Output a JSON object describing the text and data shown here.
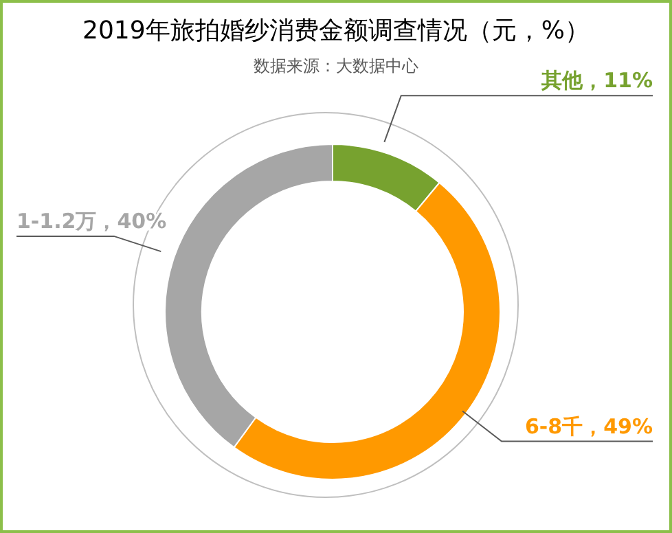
{
  "chart_data": {
    "type": "donut",
    "title": "2019年旅拍婚纱消费金额调查情况（元，%）",
    "subtitle": "数据来源：大数据中心",
    "categories": [
      "其他",
      "6-8千",
      "1-1.2万"
    ],
    "values": [
      11,
      49,
      40
    ],
    "colors": [
      "#77a22f",
      "#ff9900",
      "#a6a6a6"
    ],
    "value_labels": [
      "11%",
      "49%",
      "40%"
    ],
    "legend": false
  }
}
